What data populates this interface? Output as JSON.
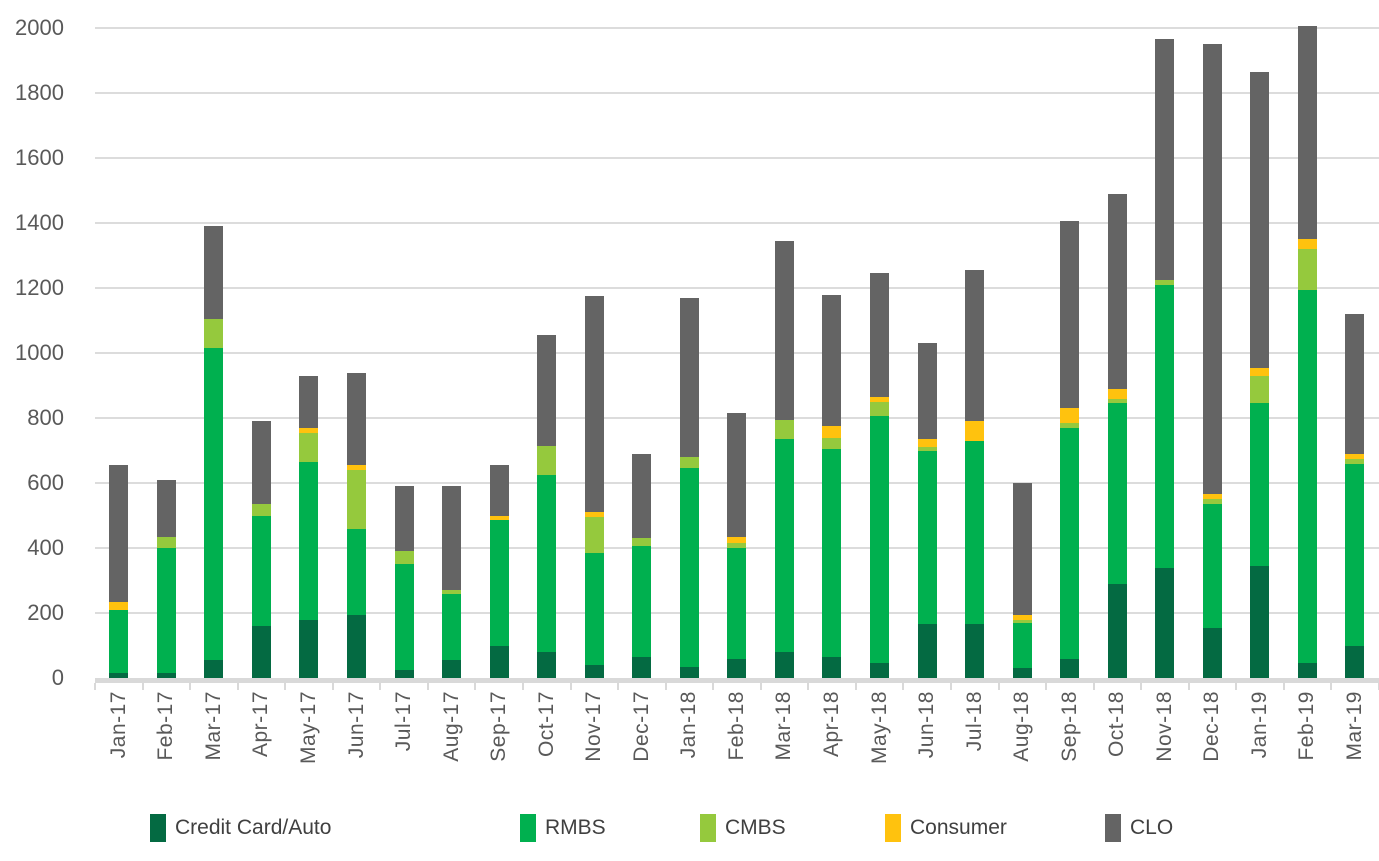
{
  "chart_data": {
    "type": "bar",
    "stacked": true,
    "title": "",
    "xlabel": "",
    "ylabel": "",
    "ylim": [
      0,
      2000
    ],
    "ytick_step": 200,
    "ytick_labels": [
      "0",
      "200",
      "400",
      "600",
      "800",
      "1000",
      "1200",
      "1400",
      "1600",
      "1800",
      "2000"
    ],
    "grid": "horizontal",
    "legend_position": "bottom",
    "categories": [
      "Jan-17",
      "Feb-17",
      "Mar-17",
      "Apr-17",
      "May-17",
      "Jun-17",
      "Jul-17",
      "Aug-17",
      "Sep-17",
      "Oct-17",
      "Nov-17",
      "Dec-17",
      "Jan-18",
      "Feb-18",
      "Mar-18",
      "Apr-18",
      "May-18",
      "Jun-18",
      "Jul-18",
      "Aug-18",
      "Sep-18",
      "Oct-18",
      "Nov-18",
      "Dec-18",
      "Jan-19",
      "Feb-19",
      "Mar-19"
    ],
    "series": [
      {
        "name": "Credit Card/Auto",
        "color": "#046A42",
        "values": [
          15,
          15,
          55,
          160,
          180,
          195,
          25,
          55,
          100,
          80,
          40,
          65,
          35,
          60,
          80,
          65,
          45,
          165,
          165,
          30,
          60,
          290,
          340,
          155,
          345,
          45,
          100
        ]
      },
      {
        "name": "RMBS",
        "color": "#00B04F",
        "values": [
          195,
          385,
          960,
          340,
          485,
          265,
          325,
          205,
          385,
          545,
          345,
          340,
          610,
          340,
          655,
          640,
          760,
          535,
          565,
          140,
          710,
          555,
          870,
          380,
          500,
          1150,
          560
        ]
      },
      {
        "name": "CMBS",
        "color": "#95C93D",
        "values": [
          0,
          35,
          90,
          35,
          90,
          180,
          40,
          10,
          0,
          90,
          110,
          25,
          35,
          15,
          60,
          35,
          45,
          10,
          0,
          10,
          15,
          15,
          15,
          15,
          85,
          125,
          15
        ]
      },
      {
        "name": "Consumer",
        "color": "#FFC20E",
        "values": [
          25,
          0,
          0,
          0,
          15,
          15,
          0,
          0,
          15,
          0,
          15,
          0,
          0,
          20,
          0,
          35,
          15,
          25,
          60,
          15,
          45,
          30,
          0,
          15,
          25,
          30,
          15
        ]
      },
      {
        "name": "CLO",
        "color": "#646464",
        "values": [
          420,
          175,
          285,
          255,
          160,
          285,
          200,
          320,
          155,
          340,
          665,
          260,
          490,
          380,
          550,
          405,
          380,
          295,
          465,
          405,
          575,
          600,
          740,
          1385,
          910,
          655,
          430
        ]
      }
    ],
    "totals": [
      655,
      610,
      1390,
      790,
      930,
      940,
      590,
      590,
      655,
      1055,
      1175,
      690,
      1170,
      815,
      1345,
      1180,
      1245,
      1030,
      1255,
      600,
      1405,
      1490,
      1965,
      1950,
      1865,
      2005,
      1120
    ]
  },
  "colors": {
    "gridline": "#DCDCDC",
    "axis_line": "#D9D9D9",
    "axis_text": "#595959",
    "legend_text": "#404040"
  }
}
